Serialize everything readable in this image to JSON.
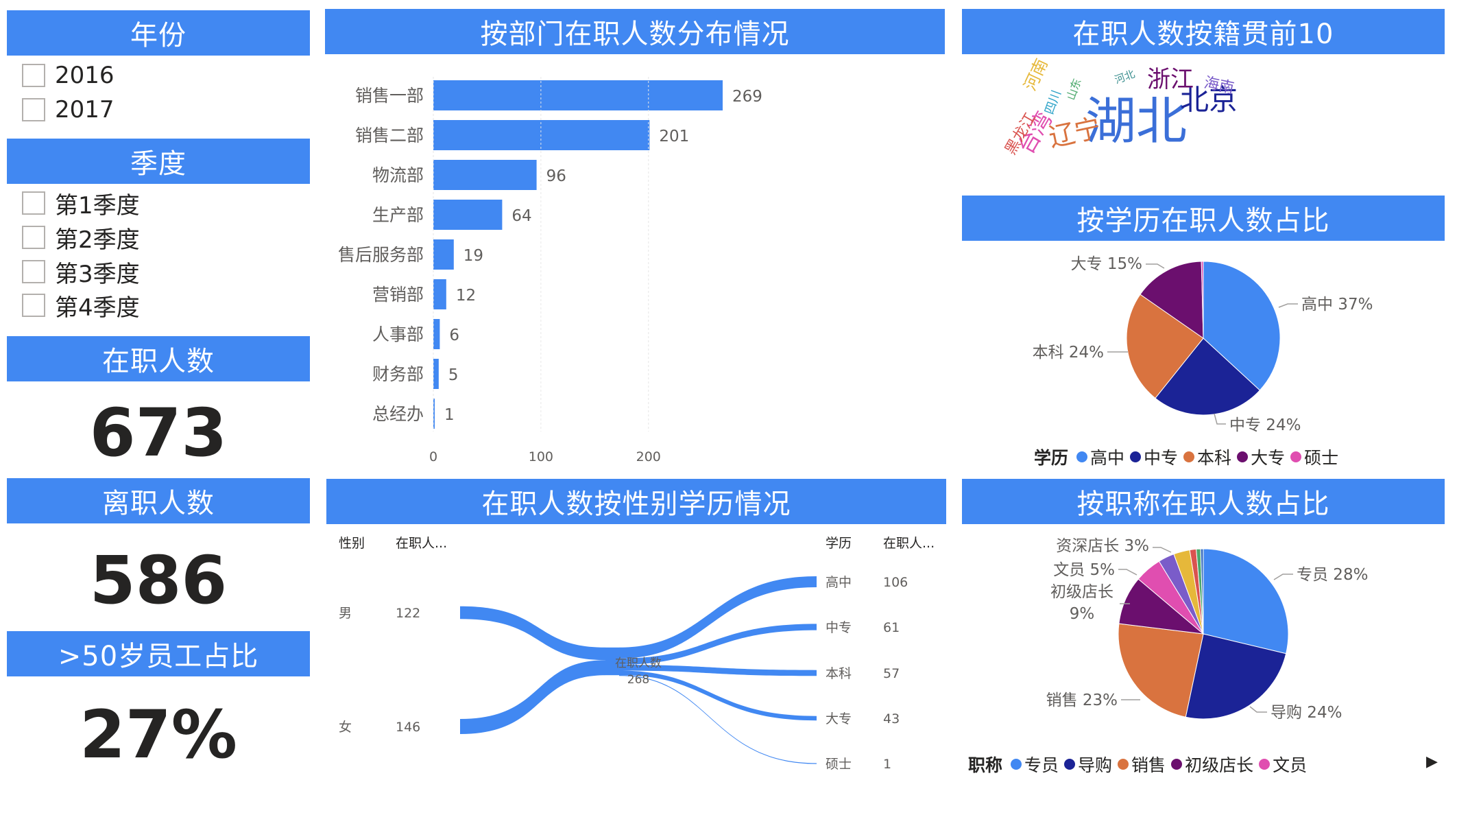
{
  "filters": {
    "year": {
      "title": "年份",
      "options": [
        "2016",
        "2017"
      ]
    },
    "quarter": {
      "title": "季度",
      "options": [
        "第1季度",
        "第2季度",
        "第3季度",
        "第4季度"
      ]
    }
  },
  "kpis": {
    "active": {
      "title": "在职人数",
      "value": "673"
    },
    "left": {
      "title": "离职人数",
      "value": "586"
    },
    "over50": {
      "title": ">50岁员工占比",
      "value": "27%"
    }
  },
  "headers": {
    "dept": "按部门在职人数分布情况",
    "gender_edu": "在职人数按性别学历情况",
    "hometown": "在职人数按籍贯前10",
    "edu": "按学历在职人数占比",
    "title": "按职称在职人数占比"
  },
  "colors": {
    "accent": "#4188F2",
    "bar": "#4188F2",
    "pie": [
      "#4188F2",
      "#1B2396",
      "#D9733F",
      "#6B0F6E",
      "#E04EB0",
      "#7A5CC9",
      "#E6B83A",
      "#D9534F",
      "#4AA86B",
      "#3B6FC0"
    ]
  },
  "chart_data": [
    {
      "type": "bar",
      "title": "按部门在职人数分布情况",
      "categories": [
        "销售一部",
        "销售二部",
        "物流部",
        "生产部",
        "售后服务部",
        "营销部",
        "人事部",
        "财务部",
        "总经办"
      ],
      "values": [
        269,
        201,
        96,
        64,
        19,
        12,
        6,
        5,
        1
      ],
      "xlim": [
        0,
        290
      ],
      "xticks": [
        "0",
        "100",
        "200"
      ]
    },
    {
      "type": "sankey",
      "title": "在职人数按性别学历情况",
      "left_headers": [
        "性别",
        "在职人..."
      ],
      "right_headers": [
        "学历",
        "在职人..."
      ],
      "center": {
        "label": "在职人数",
        "value": "268"
      },
      "sources": [
        {
          "name": "男",
          "value": 122
        },
        {
          "name": "女",
          "value": 146
        }
      ],
      "targets": [
        {
          "name": "高中",
          "value": 106
        },
        {
          "name": "中专",
          "value": 61
        },
        {
          "name": "本科",
          "value": 57
        },
        {
          "name": "大专",
          "value": 43
        },
        {
          "name": "硕士",
          "value": 1
        }
      ]
    },
    {
      "type": "wordcloud",
      "title": "在职人数按籍贯前10",
      "words": [
        {
          "text": "湖北",
          "color": "#3B6FD8"
        },
        {
          "text": "北京",
          "color": "#1B2396"
        },
        {
          "text": "浙江",
          "color": "#6B0F6E"
        },
        {
          "text": "辽宁",
          "color": "#D9733F"
        },
        {
          "text": "台湾",
          "color": "#E04EB0"
        },
        {
          "text": "海南",
          "color": "#7A5CC9"
        },
        {
          "text": "河南",
          "color": "#E6B83A"
        },
        {
          "text": "黑龙江",
          "color": "#D9534F"
        },
        {
          "text": "四川",
          "color": "#2DA3C8"
        },
        {
          "text": "山东",
          "color": "#4AA86B"
        },
        {
          "text": "河北",
          "color": "#3B8F8F"
        }
      ]
    },
    {
      "type": "pie",
      "title": "按学历在职人数占比",
      "legend_title": "学历",
      "slices": [
        {
          "name": "高中",
          "value": 37,
          "label": "高中 37%"
        },
        {
          "name": "中专",
          "value": 24,
          "label": "中专 24%"
        },
        {
          "name": "本科",
          "value": 24,
          "label": "本科 24%"
        },
        {
          "name": "大专",
          "value": 15,
          "label": "大专 15%"
        },
        {
          "name": "硕士",
          "value": 0.4,
          "label": ""
        }
      ]
    },
    {
      "type": "pie",
      "title": "按职称在职人数占比",
      "legend_title": "职称",
      "slices": [
        {
          "name": "专员",
          "value": 28,
          "label": "专员 28%"
        },
        {
          "name": "导购",
          "value": 24,
          "label": "导购 24%"
        },
        {
          "name": "销售",
          "value": 23,
          "label": "销售 23%"
        },
        {
          "name": "初级店长",
          "value": 9,
          "label": "初级店长 9%"
        },
        {
          "name": "文员",
          "value": 5,
          "label": "文员 5%"
        },
        {
          "name": "",
          "value": 3,
          "label": ""
        },
        {
          "name": "资深店长",
          "value": 3,
          "label": "资深店长 3%"
        },
        {
          "name": "",
          "value": 1.2,
          "label": ""
        },
        {
          "name": "",
          "value": 0.8,
          "label": ""
        },
        {
          "name": "",
          "value": 0.5,
          "label": ""
        }
      ]
    }
  ]
}
